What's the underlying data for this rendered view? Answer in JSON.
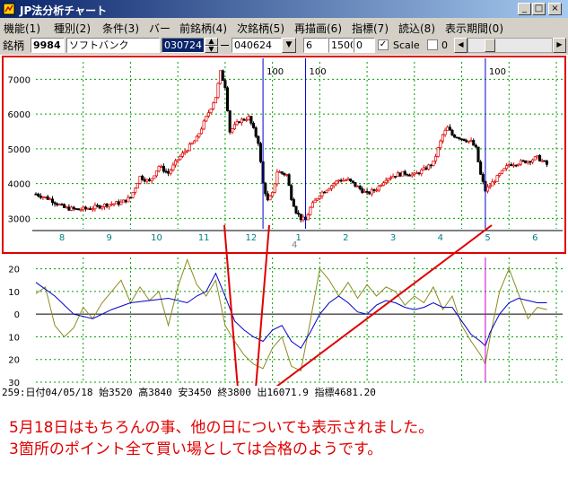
{
  "window": {
    "title": "JP法分析チャート",
    "min_glyph": "_",
    "max_glyph": "□",
    "close_glyph": "×"
  },
  "menu": {
    "items": [
      "機能(1)",
      "種別(2)",
      "条件(3)",
      "バー",
      "前銘柄(4)",
      "次銘柄(5)",
      "再描画(6)",
      "指標(7)",
      "読込(8)",
      "表示期間(0)"
    ]
  },
  "toolbar": {
    "stock_label": "銘柄",
    "code": "9984",
    "name": "ソフトバンク",
    "date_from": "030724",
    "date_to": "040624",
    "period": "6",
    "volume": "1500",
    "zero": "0",
    "scale_label": "Scale",
    "scale_checked": true,
    "zero_check_label": "0",
    "zero_checked": false
  },
  "chart_data": [
    {
      "type": "line",
      "panel": "price",
      "style": "candlestick",
      "y_ticks": [
        3000,
        4000,
        5000,
        6000,
        7000
      ],
      "ylim": [
        2700,
        7500
      ],
      "x_month_labels": [
        "8",
        "9",
        "10",
        "11",
        "12",
        "1",
        "2",
        "3",
        "4",
        "5",
        "6"
      ],
      "year_marker": "4",
      "close_path": [
        [
          0,
          3700
        ],
        [
          3,
          3550
        ],
        [
          6,
          3300
        ],
        [
          9,
          3250
        ],
        [
          12,
          3300
        ],
        [
          15,
          3400
        ],
        [
          18,
          3450
        ],
        [
          20,
          3600
        ],
        [
          22,
          4200
        ],
        [
          24,
          4050
        ],
        [
          26,
          4500
        ],
        [
          28,
          4300
        ],
        [
          30,
          4700
        ],
        [
          32,
          5000
        ],
        [
          34,
          5300
        ],
        [
          36,
          5900
        ],
        [
          38,
          6500
        ],
        [
          39,
          7200
        ],
        [
          40,
          6800
        ],
        [
          41,
          5500
        ],
        [
          43,
          5800
        ],
        [
          45,
          5900
        ],
        [
          47,
          5200
        ],
        [
          48,
          4000
        ],
        [
          49,
          3500
        ],
        [
          50,
          3700
        ],
        [
          51,
          4350
        ],
        [
          53,
          4250
        ],
        [
          54,
          3600
        ],
        [
          55,
          3200
        ],
        [
          56,
          3000
        ],
        [
          57,
          2950
        ],
        [
          58,
          3300
        ],
        [
          60,
          3700
        ],
        [
          62,
          3900
        ],
        [
          64,
          4100
        ],
        [
          66,
          4100
        ],
        [
          68,
          3900
        ],
        [
          70,
          3700
        ],
        [
          72,
          3850
        ],
        [
          74,
          4150
        ],
        [
          76,
          4250
        ],
        [
          78,
          4300
        ],
        [
          80,
          4250
        ],
        [
          82,
          4400
        ],
        [
          84,
          4600
        ],
        [
          86,
          5400
        ],
        [
          87,
          5600
        ],
        [
          88,
          5400
        ],
        [
          90,
          5300
        ],
        [
          92,
          5200
        ],
        [
          93,
          5000
        ],
        [
          94,
          4250
        ],
        [
          95,
          3800
        ],
        [
          96,
          3950
        ],
        [
          98,
          4250
        ],
        [
          100,
          4550
        ],
        [
          102,
          4600
        ],
        [
          104,
          4650
        ],
        [
          106,
          4750
        ],
        [
          108,
          4550
        ]
      ],
      "vlines": [
        {
          "x": 48,
          "label": "100"
        },
        {
          "x": 57,
          "label": "100"
        },
        {
          "x": 95,
          "label": "100"
        }
      ]
    },
    {
      "type": "line",
      "panel": "indicator",
      "y_ticks": [
        -20,
        -10,
        0,
        10,
        20
      ],
      "tick_labels": [
        "20",
        "10",
        "0",
        "10",
        "20",
        "30"
      ],
      "ylim": [
        -30,
        25
      ],
      "series": [
        {
          "values": [
            [
              0,
              9
            ],
            [
              2,
              12
            ],
            [
              4,
              -5
            ],
            [
              6,
              -10
            ],
            [
              8,
              -6
            ],
            [
              10,
              3
            ],
            [
              12,
              -2
            ],
            [
              14,
              5
            ],
            [
              16,
              10
            ],
            [
              18,
              15
            ],
            [
              20,
              5
            ],
            [
              22,
              12
            ],
            [
              24,
              6
            ],
            [
              26,
              10
            ],
            [
              28,
              -5
            ],
            [
              30,
              12
            ],
            [
              32,
              24
            ],
            [
              34,
              13
            ],
            [
              36,
              8
            ],
            [
              38,
              15
            ],
            [
              40,
              -5
            ],
            [
              42,
              -12
            ],
            [
              44,
              -18
            ],
            [
              46,
              -22
            ],
            [
              48,
              -24
            ],
            [
              50,
              -15
            ],
            [
              52,
              -10
            ],
            [
              54,
              -23
            ],
            [
              56,
              -25
            ],
            [
              58,
              -3
            ],
            [
              60,
              20
            ],
            [
              62,
              15
            ],
            [
              64,
              8
            ],
            [
              66,
              14
            ],
            [
              68,
              7
            ],
            [
              70,
              13
            ],
            [
              72,
              8
            ],
            [
              74,
              12
            ],
            [
              76,
              10
            ],
            [
              78,
              4
            ],
            [
              80,
              8
            ],
            [
              82,
              5
            ],
            [
              84,
              12
            ],
            [
              86,
              2
            ],
            [
              88,
              8
            ],
            [
              90,
              -5
            ],
            [
              92,
              -12
            ],
            [
              94,
              -18
            ],
            [
              95,
              -22
            ],
            [
              96,
              -10
            ],
            [
              98,
              10
            ],
            [
              100,
              20
            ],
            [
              102,
              9
            ],
            [
              104,
              -2
            ],
            [
              106,
              3
            ],
            [
              108,
              2
            ]
          ]
        },
        {
          "values": [
            [
              0,
              14
            ],
            [
              4,
              8
            ],
            [
              8,
              0
            ],
            [
              12,
              -2
            ],
            [
              16,
              2
            ],
            [
              20,
              5
            ],
            [
              24,
              6
            ],
            [
              28,
              7
            ],
            [
              32,
              5
            ],
            [
              34,
              8
            ],
            [
              36,
              10
            ],
            [
              38,
              18
            ],
            [
              40,
              8
            ],
            [
              42,
              -3
            ],
            [
              44,
              -7
            ],
            [
              46,
              -10
            ],
            [
              48,
              -12
            ],
            [
              50,
              -7
            ],
            [
              52,
              -5
            ],
            [
              54,
              -12
            ],
            [
              56,
              -15
            ],
            [
              58,
              -8
            ],
            [
              60,
              0
            ],
            [
              62,
              5
            ],
            [
              64,
              8
            ],
            [
              66,
              5
            ],
            [
              68,
              1
            ],
            [
              70,
              0
            ],
            [
              72,
              4
            ],
            [
              74,
              6
            ],
            [
              76,
              5
            ],
            [
              78,
              3
            ],
            [
              80,
              2
            ],
            [
              82,
              3
            ],
            [
              84,
              5
            ],
            [
              86,
              3
            ],
            [
              88,
              3
            ],
            [
              90,
              -3
            ],
            [
              92,
              -9
            ],
            [
              94,
              -12
            ],
            [
              95,
              -14
            ],
            [
              96,
              -8
            ],
            [
              98,
              0
            ],
            [
              100,
              5
            ],
            [
              102,
              7
            ],
            [
              104,
              6
            ],
            [
              106,
              5
            ],
            [
              108,
              5
            ]
          ]
        }
      ],
      "series_colors": [
        "#8b8b20",
        "#0000cc"
      ],
      "marker_line_x": 95
    }
  ],
  "status": {
    "text": "259:日付04/05/18 始3520 高3840 安3450 終3800 出16071.9 指標4681.20"
  },
  "annotation": {
    "line1": "5月18日はもちろんの事、他の日についても表示されました。",
    "line2": "3箇所のポイント全て買い場としては合格のようです。"
  },
  "colors": {
    "red": "#e00000",
    "blue": "#0000cc",
    "teal": "#008080",
    "magenta": "#cc00cc",
    "indicator_dark": "#8b8b20",
    "grid": "#00a000"
  }
}
